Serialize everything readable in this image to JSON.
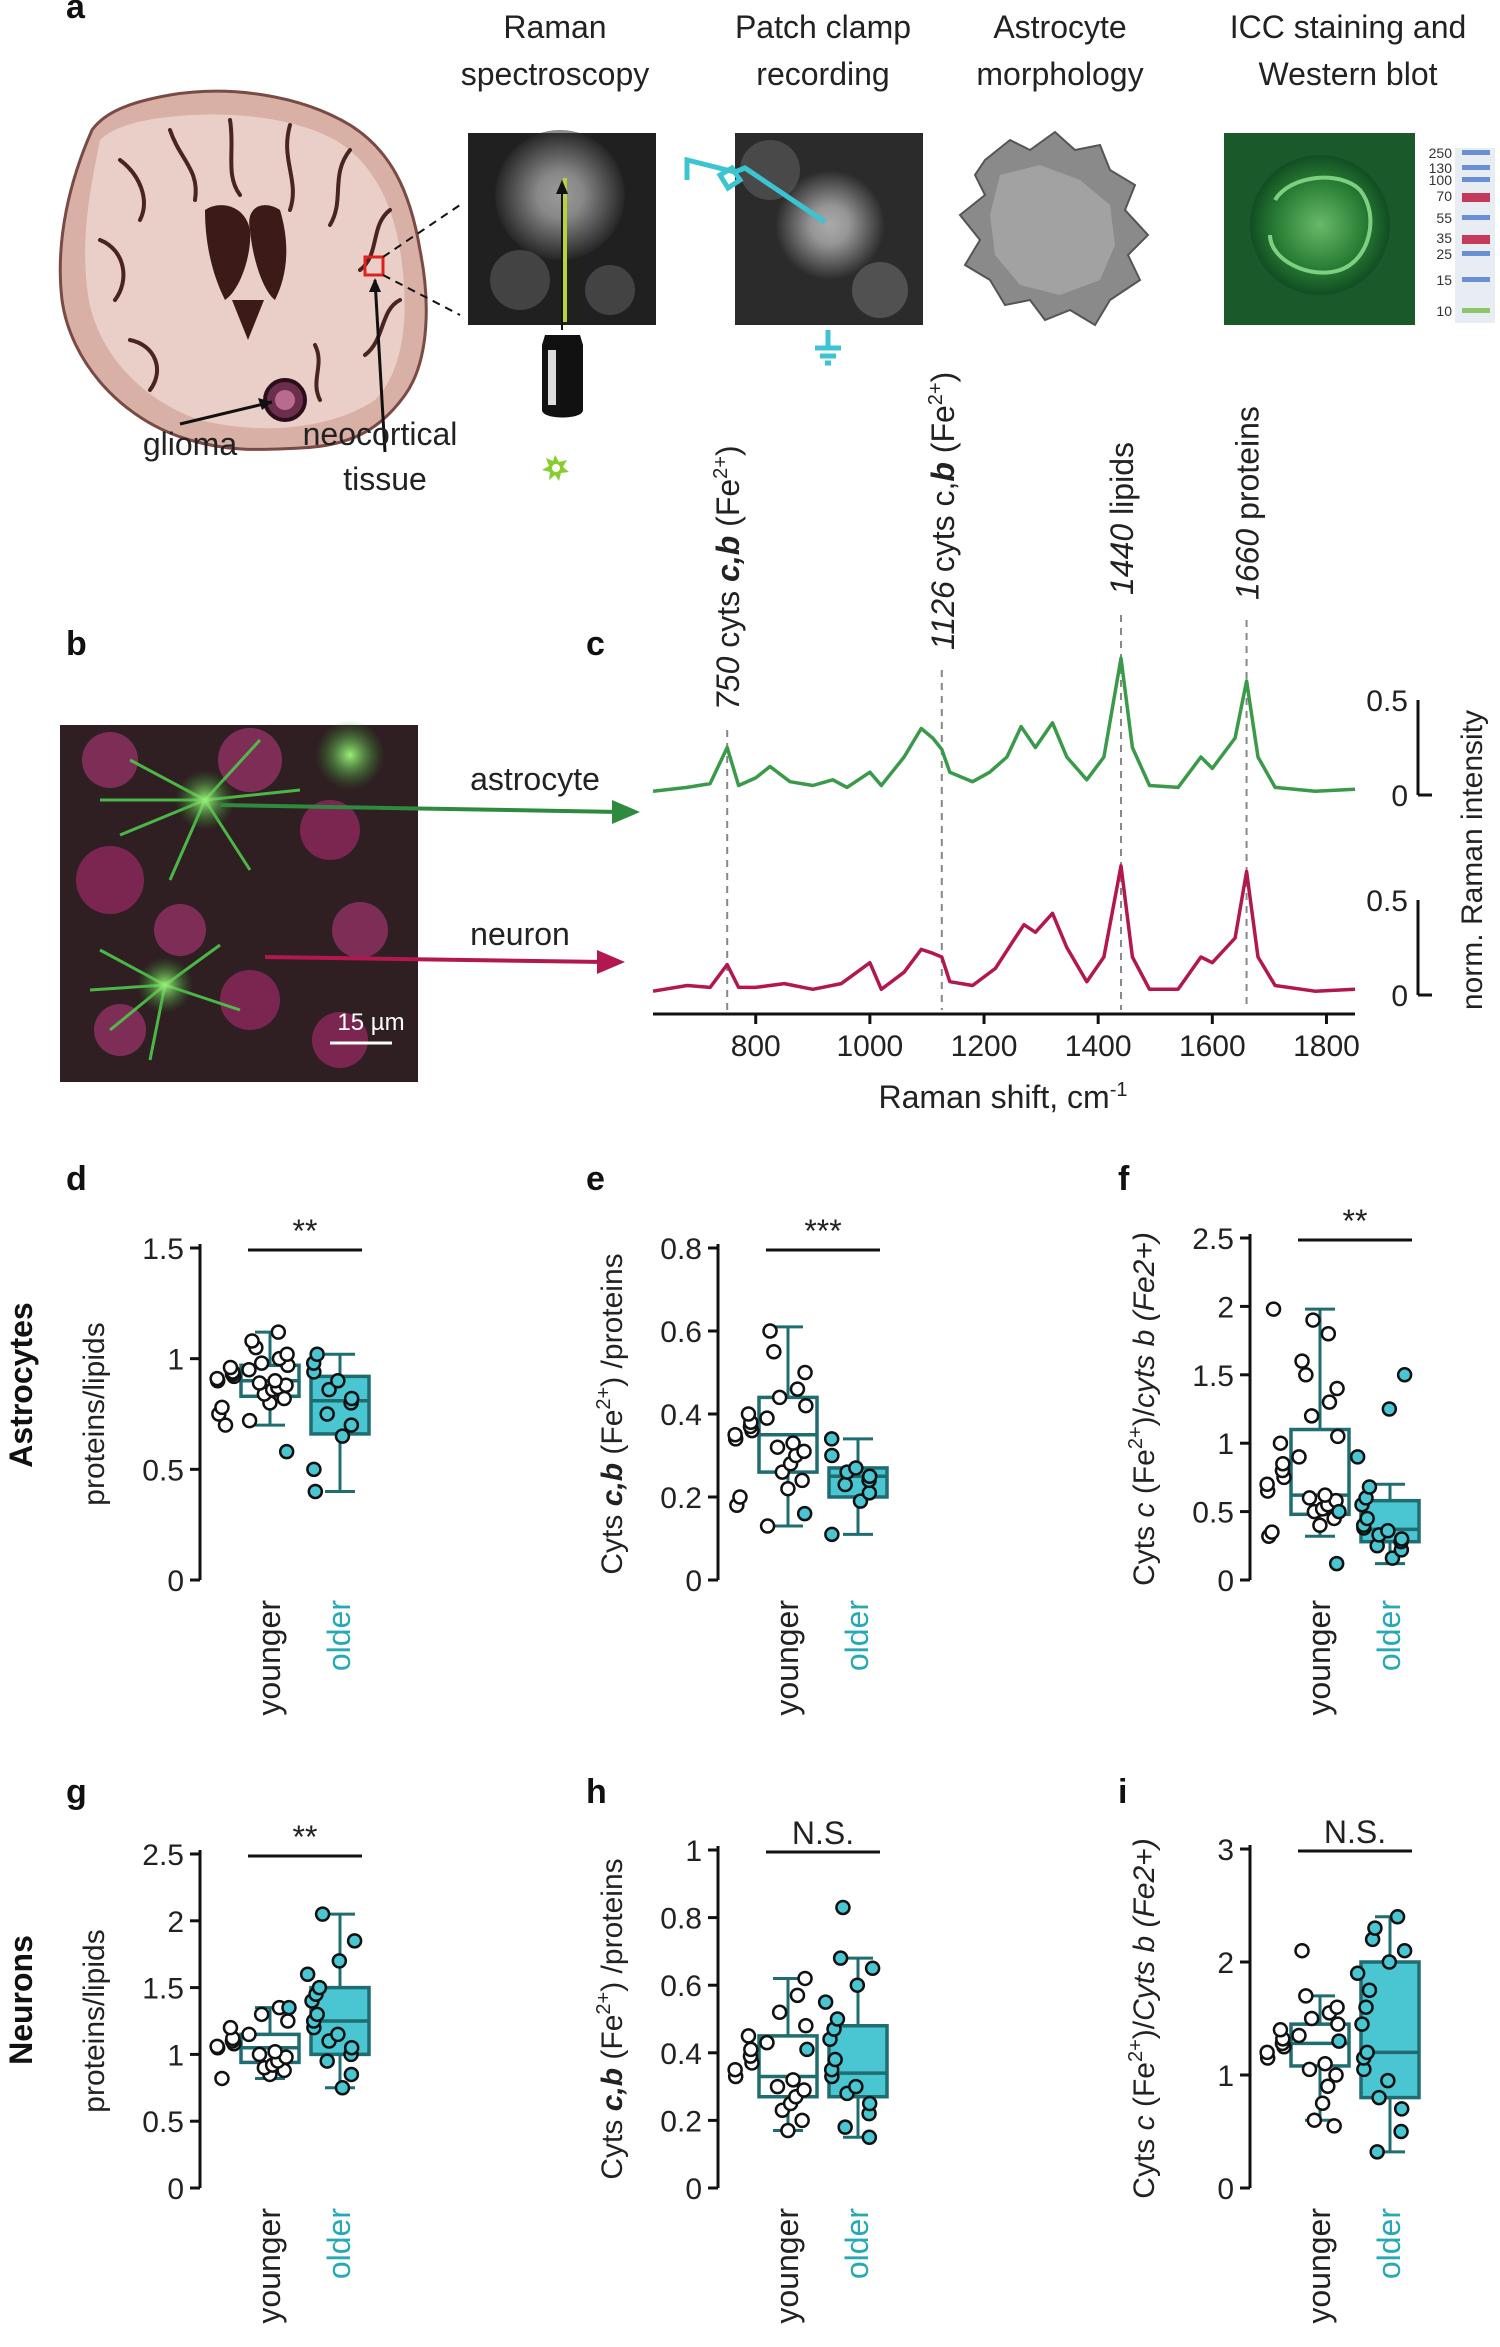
{
  "panel_letters": [
    "a",
    "b",
    "c",
    "d",
    "e",
    "f",
    "g",
    "h",
    "i"
  ],
  "panel_a": {
    "headers": [
      [
        "Raman",
        "spectroscopy"
      ],
      [
        "Patch clamp",
        "recording"
      ],
      [
        "Astrocyte",
        "morphology"
      ],
      [
        "ICC staining and",
        "Western blot"
      ]
    ],
    "brain_labels": {
      "glioma": "glioma",
      "neocortical_1": "neocortical",
      "neocortical_2": "tissue"
    },
    "blot_markers": [
      "250",
      "130",
      "100",
      "70",
      "55",
      "35",
      "25",
      "15",
      "10"
    ]
  },
  "panel_b": {
    "scale_bar": "15 µm",
    "astrocyte_label": "astrocyte",
    "neuron_label": "neuron"
  },
  "row_labels": {
    "astrocytes": "Astrocytes",
    "neurons": "Neurons"
  },
  "colors": {
    "astrocyte_green": "#3a9a4a",
    "neuron_red": "#b3174f",
    "older_teal": "#26a9b5",
    "box_dark": "#1f6d70",
    "box_fill": "#49c6d1"
  },
  "chart_data": [
    {
      "panel": "c",
      "type": "line",
      "xlabel": "Raman shift, cm",
      "xlabel_sup": "-1",
      "ylabel": "norm. Raman intensity",
      "xlim": [
        620,
        1850
      ],
      "xticks": [
        800,
        1000,
        1200,
        1400,
        1600,
        1800
      ],
      "scale_bar": {
        "top": "0.5",
        "bottom": "0"
      },
      "peaks": [
        {
          "x": 750,
          "label": [
            "750",
            " cyts ",
            "c,b",
            " (Fe",
            "2+",
            ")"
          ]
        },
        {
          "x": 1126,
          "label": [
            "1126",
            " cyts c,",
            "b",
            " (Fe",
            "2+",
            ")"
          ]
        },
        {
          "x": 1440,
          "label": [
            "1440",
            " lipids",
            "",
            "",
            "",
            ""
          ]
        },
        {
          "x": 1660,
          "label": [
            "1660",
            " proteins",
            "",
            "",
            "",
            ""
          ]
        }
      ],
      "series": [
        {
          "name": "astrocyte",
          "points": [
            [
              620,
              0.02
            ],
            [
              680,
              0.04
            ],
            [
              720,
              0.06
            ],
            [
              750,
              0.25
            ],
            [
              770,
              0.05
            ],
            [
              800,
              0.09
            ],
            [
              825,
              0.15
            ],
            [
              860,
              0.07
            ],
            [
              900,
              0.05
            ],
            [
              935,
              0.08
            ],
            [
              960,
              0.04
            ],
            [
              1000,
              0.12
            ],
            [
              1020,
              0.05
            ],
            [
              1060,
              0.2
            ],
            [
              1090,
              0.35
            ],
            [
              1110,
              0.3
            ],
            [
              1126,
              0.24
            ],
            [
              1140,
              0.12
            ],
            [
              1180,
              0.07
            ],
            [
              1210,
              0.12
            ],
            [
              1240,
              0.2
            ],
            [
              1265,
              0.36
            ],
            [
              1290,
              0.25
            ],
            [
              1320,
              0.38
            ],
            [
              1345,
              0.2
            ],
            [
              1380,
              0.08
            ],
            [
              1410,
              0.2
            ],
            [
              1440,
              0.72
            ],
            [
              1460,
              0.25
            ],
            [
              1490,
              0.05
            ],
            [
              1540,
              0.04
            ],
            [
              1580,
              0.2
            ],
            [
              1600,
              0.14
            ],
            [
              1640,
              0.3
            ],
            [
              1660,
              0.6
            ],
            [
              1680,
              0.2
            ],
            [
              1710,
              0.04
            ],
            [
              1780,
              0.02
            ],
            [
              1850,
              0.03
            ]
          ]
        },
        {
          "name": "neuron",
          "points": [
            [
              620,
              0.02
            ],
            [
              680,
              0.05
            ],
            [
              720,
              0.04
            ],
            [
              750,
              0.16
            ],
            [
              770,
              0.04
            ],
            [
              800,
              0.04
            ],
            [
              850,
              0.06
            ],
            [
              900,
              0.03
            ],
            [
              950,
              0.06
            ],
            [
              1000,
              0.17
            ],
            [
              1020,
              0.03
            ],
            [
              1060,
              0.12
            ],
            [
              1090,
              0.24
            ],
            [
              1110,
              0.22
            ],
            [
              1126,
              0.2
            ],
            [
              1140,
              0.07
            ],
            [
              1180,
              0.05
            ],
            [
              1220,
              0.14
            ],
            [
              1250,
              0.28
            ],
            [
              1270,
              0.37
            ],
            [
              1290,
              0.33
            ],
            [
              1320,
              0.43
            ],
            [
              1345,
              0.25
            ],
            [
              1380,
              0.07
            ],
            [
              1410,
              0.2
            ],
            [
              1440,
              0.68
            ],
            [
              1460,
              0.2
            ],
            [
              1490,
              0.03
            ],
            [
              1540,
              0.03
            ],
            [
              1580,
              0.2
            ],
            [
              1600,
              0.17
            ],
            [
              1640,
              0.3
            ],
            [
              1660,
              0.65
            ],
            [
              1680,
              0.2
            ],
            [
              1710,
              0.05
            ],
            [
              1780,
              0.02
            ],
            [
              1850,
              0.03
            ]
          ]
        }
      ]
    },
    {
      "panel": "d",
      "type": "box",
      "ylabel": [
        "proteins/lipids",
        "",
        "",
        "",
        "",
        ""
      ],
      "ylim": [
        0,
        1.5
      ],
      "yticks": [
        "0",
        "0.5",
        "1",
        "1.5"
      ],
      "ytick_values": [
        0,
        0.5,
        1,
        1.5
      ],
      "significance": "**",
      "categories": [
        "younger",
        "older"
      ],
      "boxes": [
        {
          "name": "younger",
          "whisker_low": 0.7,
          "q1": 0.83,
          "median": 0.9,
          "q3": 0.97,
          "whisker_high": 1.12,
          "points": [
            0.7,
            0.72,
            0.75,
            0.78,
            0.8,
            0.82,
            0.84,
            0.86,
            0.87,
            0.88,
            0.89,
            0.9,
            0.9,
            0.91,
            0.92,
            0.93,
            0.94,
            0.95,
            0.96,
            0.97,
            0.98,
            1.0,
            1.02,
            1.05,
            1.08,
            1.12
          ]
        },
        {
          "name": "older",
          "whisker_low": 0.4,
          "q1": 0.66,
          "median": 0.81,
          "q3": 0.92,
          "whisker_high": 1.02,
          "points": [
            0.4,
            0.5,
            0.58,
            0.65,
            0.7,
            0.75,
            0.8,
            0.82,
            0.86,
            0.9,
            0.94,
            0.98,
            1.02
          ]
        }
      ]
    },
    {
      "panel": "e",
      "type": "box",
      "ylabel": [
        "Cyts ",
        "c,b",
        " (Fe",
        "2+",
        ") /proteins",
        ""
      ],
      "ylim": [
        0,
        0.8
      ],
      "yticks": [
        "0",
        "0.2",
        "0.4",
        "0.6",
        "0.8"
      ],
      "ytick_values": [
        0,
        0.2,
        0.4,
        0.6,
        0.8
      ],
      "significance": "***",
      "categories": [
        "younger",
        "older"
      ],
      "boxes": [
        {
          "name": "younger",
          "whisker_low": 0.13,
          "q1": 0.26,
          "median": 0.35,
          "q3": 0.44,
          "whisker_high": 0.61,
          "points": [
            0.13,
            0.18,
            0.2,
            0.22,
            0.24,
            0.26,
            0.28,
            0.3,
            0.31,
            0.32,
            0.33,
            0.34,
            0.35,
            0.36,
            0.37,
            0.38,
            0.39,
            0.4,
            0.42,
            0.44,
            0.46,
            0.5,
            0.55,
            0.6
          ]
        },
        {
          "name": "older",
          "whisker_low": 0.11,
          "q1": 0.2,
          "median": 0.25,
          "q3": 0.27,
          "whisker_high": 0.34,
          "points": [
            0.11,
            0.16,
            0.19,
            0.21,
            0.23,
            0.24,
            0.25,
            0.26,
            0.27,
            0.3,
            0.34
          ]
        }
      ]
    },
    {
      "panel": "f",
      "type": "box",
      "ylabel": [
        "Cyts ",
        "c",
        " (Fe",
        "2+",
        ")/",
        "cyts b (Fe2+)"
      ],
      "ylim": [
        0,
        2.5
      ],
      "yticks": [
        "0",
        "0.5",
        "1",
        "1.5",
        "2",
        "2.5"
      ],
      "ytick_values": [
        0,
        0.5,
        1,
        1.5,
        2,
        2.5
      ],
      "significance": "**",
      "categories": [
        "younger",
        "older"
      ],
      "boxes": [
        {
          "name": "younger",
          "whisker_low": 0.32,
          "q1": 0.48,
          "median": 0.62,
          "q3": 1.1,
          "whisker_high": 1.98,
          "points": [
            0.32,
            0.35,
            0.4,
            0.45,
            0.5,
            0.52,
            0.55,
            0.58,
            0.6,
            0.62,
            0.65,
            0.7,
            0.75,
            0.8,
            0.85,
            0.9,
            1.0,
            1.05,
            1.2,
            1.3,
            1.4,
            1.5,
            1.6,
            1.8,
            1.9,
            1.98
          ]
        },
        {
          "name": "older",
          "whisker_low": 0.12,
          "q1": 0.28,
          "median": 0.37,
          "q3": 0.58,
          "whisker_high": 0.7,
          "points": [
            0.12,
            0.16,
            0.22,
            0.25,
            0.28,
            0.3,
            0.33,
            0.36,
            0.38,
            0.4,
            0.45,
            0.5,
            0.55,
            0.6,
            0.68,
            0.9,
            1.25,
            1.5
          ]
        }
      ]
    },
    {
      "panel": "g",
      "type": "box",
      "ylabel": [
        "proteins/lipids",
        "",
        "",
        "",
        "",
        ""
      ],
      "ylim": [
        0,
        2.5
      ],
      "yticks": [
        "0",
        "0.5",
        "1",
        "1.5",
        "2",
        "2.5"
      ],
      "ytick_values": [
        0,
        0.5,
        1,
        1.5,
        2,
        2.5
      ],
      "significance": "**",
      "categories": [
        "younger",
        "older"
      ],
      "boxes": [
        {
          "name": "younger",
          "whisker_low": 0.82,
          "q1": 0.94,
          "median": 1.05,
          "q3": 1.15,
          "whisker_high": 1.35,
          "points": [
            0.82,
            0.85,
            0.88,
            0.9,
            0.92,
            0.95,
            0.98,
            1.0,
            1.02,
            1.05,
            1.06,
            1.08,
            1.1,
            1.12,
            1.15,
            1.2,
            1.25,
            1.3,
            1.35
          ]
        },
        {
          "name": "older",
          "whisker_low": 0.75,
          "q1": 1.0,
          "median": 1.25,
          "q3": 1.5,
          "whisker_high": 2.05,
          "points": [
            0.75,
            0.85,
            0.95,
            1.0,
            1.05,
            1.1,
            1.15,
            1.2,
            1.25,
            1.3,
            1.35,
            1.4,
            1.45,
            1.5,
            1.6,
            1.7,
            1.85,
            2.05
          ]
        }
      ]
    },
    {
      "panel": "h",
      "type": "box",
      "ylabel": [
        "Cyts ",
        "c,b",
        " (Fe",
        "2+",
        ") /proteins",
        ""
      ],
      "ylim": [
        0,
        1
      ],
      "yticks": [
        "0",
        "0.2",
        "0.4",
        "0.6",
        "0.8",
        "1"
      ],
      "ytick_values": [
        0,
        0.2,
        0.4,
        0.6,
        0.8,
        1
      ],
      "significance": "N.S.",
      "categories": [
        "younger",
        "older"
      ],
      "boxes": [
        {
          "name": "younger",
          "whisker_low": 0.17,
          "q1": 0.27,
          "median": 0.33,
          "q3": 0.45,
          "whisker_high": 0.62,
          "points": [
            0.17,
            0.2,
            0.23,
            0.25,
            0.27,
            0.29,
            0.3,
            0.32,
            0.33,
            0.35,
            0.37,
            0.39,
            0.41,
            0.43,
            0.45,
            0.48,
            0.52,
            0.57,
            0.62
          ]
        },
        {
          "name": "older",
          "whisker_low": 0.15,
          "q1": 0.27,
          "median": 0.34,
          "q3": 0.48,
          "whisker_high": 0.68,
          "points": [
            0.15,
            0.18,
            0.22,
            0.25,
            0.28,
            0.3,
            0.33,
            0.35,
            0.38,
            0.41,
            0.44,
            0.47,
            0.5,
            0.55,
            0.6,
            0.65,
            0.68,
            0.83
          ]
        }
      ]
    },
    {
      "panel": "i",
      "type": "box",
      "ylabel": [
        "Cyts ",
        "c",
        " (Fe",
        "2+",
        ")/",
        "Cyts b (Fe2+)"
      ],
      "ylim": [
        0,
        3
      ],
      "yticks": [
        "0",
        "1",
        "2",
        "3"
      ],
      "ytick_values": [
        0,
        1,
        2,
        3
      ],
      "significance": "N.S.",
      "categories": [
        "younger",
        "older"
      ],
      "boxes": [
        {
          "name": "younger",
          "whisker_low": 0.6,
          "q1": 1.08,
          "median": 1.28,
          "q3": 1.45,
          "whisker_high": 1.7,
          "points": [
            0.55,
            0.6,
            0.75,
            0.9,
            1.0,
            1.05,
            1.1,
            1.15,
            1.2,
            1.25,
            1.28,
            1.32,
            1.35,
            1.4,
            1.45,
            1.5,
            1.55,
            1.6,
            1.7,
            2.1
          ]
        },
        {
          "name": "older",
          "whisker_low": 0.32,
          "q1": 0.8,
          "median": 1.2,
          "q3": 2.0,
          "whisker_high": 2.4,
          "points": [
            0.32,
            0.5,
            0.7,
            0.8,
            0.95,
            1.05,
            1.15,
            1.2,
            1.3,
            1.45,
            1.6,
            1.75,
            1.9,
            2.0,
            2.1,
            2.2,
            2.3,
            2.4
          ]
        }
      ]
    }
  ]
}
